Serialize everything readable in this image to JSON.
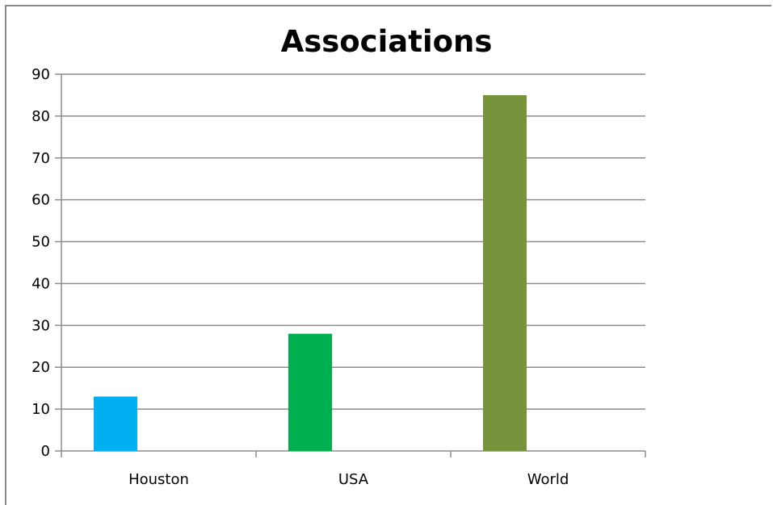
{
  "chart_data": {
    "type": "bar",
    "title": "Associations",
    "xlabel": "",
    "ylabel": "",
    "categories": [
      "Houston",
      "USA",
      "World"
    ],
    "values": [
      13,
      28,
      85
    ],
    "colors": [
      "#00b0f0",
      "#00b050",
      "#77933c"
    ],
    "ylim": [
      0,
      90
    ],
    "yticks": [
      0,
      10,
      20,
      30,
      40,
      50,
      60,
      70,
      80,
      90
    ],
    "grid": true,
    "legend": "none"
  }
}
